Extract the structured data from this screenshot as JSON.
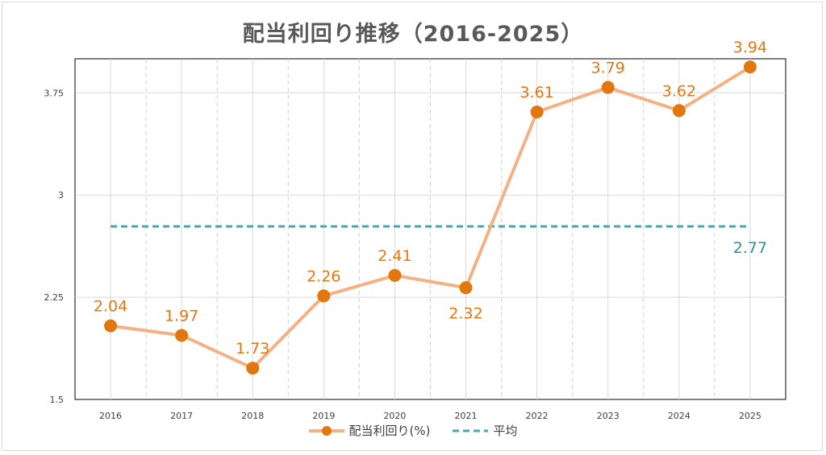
{
  "chart_data": {
    "type": "line",
    "title": "配当利回り推移（2016-2025）",
    "categories": [
      "2016",
      "2017",
      "2018",
      "2019",
      "2020",
      "2021",
      "2022",
      "2023",
      "2024",
      "2025"
    ],
    "series": [
      {
        "name": "配当利回り(%)",
        "values": [
          2.04,
          1.97,
          1.73,
          2.26,
          2.41,
          2.32,
          3.61,
          3.79,
          3.62,
          3.94
        ],
        "color": "#f4b183",
        "marker_color": "#e2770f",
        "label_color": "#e2770f"
      },
      {
        "name": "平均",
        "values": [
          2.77,
          2.77,
          2.77,
          2.77,
          2.77,
          2.77,
          2.77,
          2.77,
          2.77,
          2.77
        ],
        "color": "#4aa3b5",
        "style": "dashed",
        "label_color": "#2e8fa0"
      }
    ],
    "average_label": "2.77",
    "ylim": [
      1.5,
      4.0
    ],
    "yticks": [
      1.5,
      2.25,
      3,
      3.75
    ],
    "ytick_labels": [
      "1.5",
      "2.25",
      "3",
      "3.75"
    ],
    "grid": true,
    "legend_position": "bottom"
  }
}
